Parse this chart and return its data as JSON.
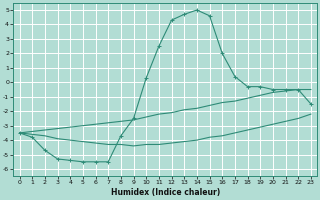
{
  "xlabel": "Humidex (Indice chaleur)",
  "xlim": [
    -0.5,
    23.5
  ],
  "ylim": [
    -6.5,
    5.5
  ],
  "xticks": [
    0,
    1,
    2,
    3,
    4,
    5,
    6,
    7,
    8,
    9,
    10,
    11,
    12,
    13,
    14,
    15,
    16,
    17,
    18,
    19,
    20,
    21,
    22,
    23
  ],
  "yticks": [
    -6,
    -5,
    -4,
    -3,
    -2,
    -1,
    0,
    1,
    2,
    3,
    4,
    5
  ],
  "background_color": "#b2ddd4",
  "grid_color": "#ffffff",
  "line_color": "#2e8b77",
  "x": [
    0,
    1,
    2,
    3,
    4,
    5,
    6,
    7,
    8,
    9,
    10,
    11,
    12,
    13,
    14,
    15,
    16,
    17,
    18,
    19,
    20,
    21,
    22,
    23
  ],
  "line_main": [
    -3.5,
    -3.8,
    -4.7,
    -5.3,
    -5.4,
    -5.5,
    -5.5,
    -5.5,
    -3.7,
    -2.5,
    0.3,
    2.5,
    4.3,
    4.7,
    5.0,
    4.6,
    2.0,
    0.4,
    -0.3,
    -0.3,
    -0.5,
    -0.5,
    -0.5,
    -1.5
  ],
  "line_upper": [
    -3.5,
    -3.4,
    -3.3,
    -3.2,
    -3.1,
    -3.0,
    -2.9,
    -2.8,
    -2.7,
    -2.6,
    -2.4,
    -2.2,
    -2.1,
    -1.9,
    -1.8,
    -1.6,
    -1.4,
    -1.3,
    -1.1,
    -0.9,
    -0.7,
    -0.6,
    -0.5,
    -0.5
  ],
  "line_lower": [
    -3.5,
    -3.6,
    -3.7,
    -3.9,
    -4.0,
    -4.1,
    -4.2,
    -4.3,
    -4.3,
    -4.4,
    -4.3,
    -4.3,
    -4.2,
    -4.1,
    -4.0,
    -3.8,
    -3.7,
    -3.5,
    -3.3,
    -3.1,
    -2.9,
    -2.7,
    -2.5,
    -2.2
  ]
}
